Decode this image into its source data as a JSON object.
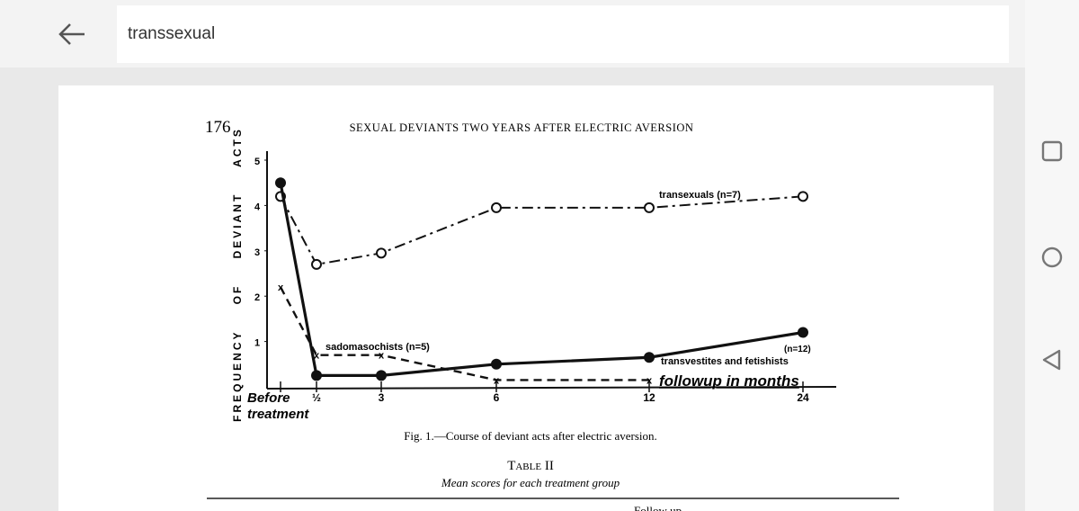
{
  "search": {
    "value": "transsexual"
  },
  "document": {
    "page_number": "176",
    "running_head": "SEXUAL DEVIANTS TWO YEARS AFTER ELECTRIC AVERSION",
    "figure_caption": "Fig. 1.—Course of deviant acts after electric aversion.",
    "table_title": "Table II",
    "table_subtitle": "Mean scores for each treatment group",
    "table_header_partial": "Follow up"
  },
  "chart_data": {
    "type": "line",
    "ylabel": "FREQUENCY OF DEVIANT ACTS",
    "xlabel": "followup in months",
    "categories": [
      "Before treatment",
      "½",
      "3",
      "6",
      "12",
      "24"
    ],
    "yticks": [
      "1",
      "2",
      "3",
      "4",
      "5"
    ],
    "ylim": [
      0,
      5
    ],
    "grid": false,
    "series": [
      {
        "name": "transexuals (n=7)",
        "style": "dash-dot",
        "marker": "open-circle",
        "values": [
          4.2,
          2.7,
          2.95,
          3.95,
          3.95,
          4.2
        ]
      },
      {
        "name": "transvestites and fetishists",
        "n_label": "(n=12)",
        "style": "solid",
        "marker": "filled-circle",
        "values": [
          4.5,
          0.25,
          0.25,
          0.5,
          0.65,
          1.2
        ]
      },
      {
        "name": "sadomasochists (n=5)",
        "style": "dashed",
        "marker": "x",
        "values": [
          2.2,
          0.7,
          0.7,
          0.15,
          0.15,
          null
        ]
      }
    ]
  },
  "icons": {
    "back": "arrow-left-icon",
    "nav": [
      "square-recents-icon",
      "circle-home-icon",
      "triangle-back-icon"
    ]
  }
}
